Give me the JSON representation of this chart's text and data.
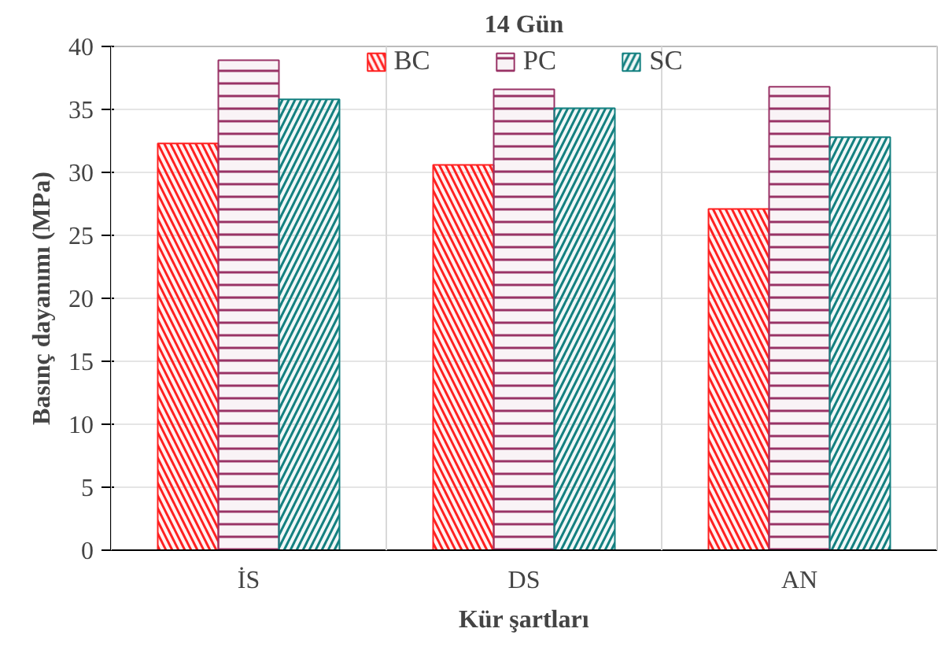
{
  "chart_data": {
    "type": "bar",
    "title": "14 Gün",
    "xlabel": "Kür şartları",
    "ylabel": "Basınç dayanımı (MPa)",
    "categories": [
      "İS",
      "DS",
      "AN"
    ],
    "series": [
      {
        "name": "BC",
        "color": "#ff2020",
        "values": [
          32.3,
          30.6,
          27.1
        ]
      },
      {
        "name": "PC",
        "color": "#993366",
        "values": [
          38.9,
          36.6,
          36.8
        ]
      },
      {
        "name": "SC",
        "color": "#138080",
        "values": [
          35.8,
          35.1,
          32.8
        ]
      }
    ],
    "ylim": [
      0,
      40
    ],
    "yticks": [
      0,
      5,
      10,
      15,
      20,
      25,
      30,
      35,
      40
    ],
    "grid": true,
    "legend": "top"
  }
}
